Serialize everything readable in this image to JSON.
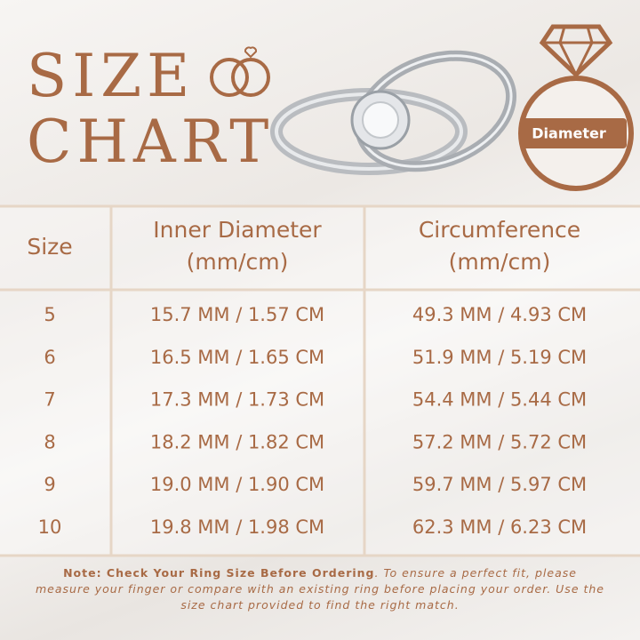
{
  "header": {
    "title": [
      "SIZE",
      "CHART"
    ],
    "icon_label": "Diameter"
  },
  "table": {
    "columns": [
      [
        "Size"
      ],
      [
        "Inner Diameter",
        "(mm/cm)"
      ],
      [
        "Circumference",
        "(mm/cm)"
      ]
    ],
    "rows": [
      [
        "5",
        "15.7 MM / 1.57 CM",
        "49.3 MM / 4.93 CM"
      ],
      [
        "6",
        "16.5 MM / 1.65 CM",
        "51.9 MM / 5.19 CM"
      ],
      [
        "7",
        "17.3 MM / 1.73 CM",
        "54.4 MM / 5.44 CM"
      ],
      [
        "8",
        "18.2 MM / 1.82 CM",
        "57.2 MM / 5.72 CM"
      ],
      [
        "9",
        "19.0 MM / 1.90 CM",
        "59.7 MM / 5.97 CM"
      ],
      [
        "10",
        "19.8 MM / 1.98 CM",
        "62.3 MM / 6.23 CM"
      ]
    ]
  },
  "note": {
    "bold": "Note: Check Your Ring Size Before Ordering",
    "text": ". To ensure a perfect fit, please measure your finger or compare with an existing ring before placing your order. Use the size chart provided to find the right match."
  }
}
